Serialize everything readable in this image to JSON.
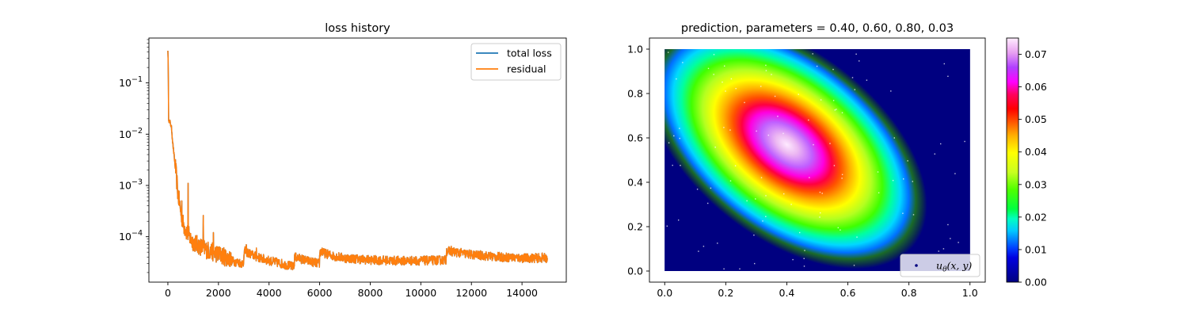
{
  "chart_data": [
    {
      "type": "line",
      "title": "loss history",
      "xlabel": "",
      "ylabel": "",
      "yscale": "log",
      "xlim": [
        -750,
        15750
      ],
      "ylim": [
        1.3e-05,
        0.75
      ],
      "x_ticks": [
        0,
        2000,
        4000,
        6000,
        8000,
        10000,
        12000,
        14000
      ],
      "x_tick_labels": [
        "0",
        "2000",
        "4000",
        "6000",
        "8000",
        "10000",
        "12000",
        "14000"
      ],
      "y_ticks": [
        0.1,
        0.01,
        0.001,
        0.0001
      ],
      "y_tick_labels": [
        {
          "base": "10",
          "exp": "−1"
        },
        {
          "base": "10",
          "exp": "−2"
        },
        {
          "base": "10",
          "exp": "−3"
        },
        {
          "base": "10",
          "exp": "−4"
        }
      ],
      "legend_position": "top-right",
      "series": [
        {
          "name": "total loss",
          "color": "#1f77b4"
        },
        {
          "name": "residual",
          "color": "#ff7f0e"
        }
      ],
      "anchor_points": {
        "x": [
          0,
          15,
          30,
          60,
          100,
          150,
          200,
          300,
          400,
          500,
          600,
          700,
          800,
          900,
          1000,
          1200,
          1500,
          2000,
          2500,
          2999,
          3001,
          3500,
          4000,
          4500,
          4999,
          5001,
          5500,
          5999,
          6001,
          6500,
          7000,
          8000,
          9000,
          10000,
          10999,
          11001,
          12000,
          13000,
          14000,
          15000
        ],
        "y": [
          0.45,
          0.2,
          0.02,
          0.017,
          0.016,
          0.012,
          0.006,
          0.002,
          0.0006,
          0.0003,
          0.00016,
          0.00012,
          0.0001,
          8e-05,
          7e-05,
          6e-05,
          5e-05,
          4e-05,
          3.2e-05,
          2.8e-05,
          5e-05,
          3.8e-05,
          3.2e-05,
          2.8e-05,
          2.4e-05,
          3.8e-05,
          3.2e-05,
          2.8e-05,
          4.8e-05,
          4e-05,
          3.6e-05,
          3.3e-05,
          3.2e-05,
          3.2e-05,
          3.3e-05,
          5e-05,
          4.2e-05,
          3.8e-05,
          3.6e-05,
          3.6e-05
        ]
      },
      "spikes": [
        {
          "x": 800,
          "y": 0.0011
        },
        {
          "x": 550,
          "y": 0.0005
        },
        {
          "x": 1400,
          "y": 0.00026
        },
        {
          "x": 1800,
          "y": 0.00012
        },
        {
          "x": 3100,
          "y": 7e-05
        },
        {
          "x": 3500,
          "y": 6e-05
        },
        {
          "x": 5100,
          "y": 4e-05
        },
        {
          "x": 6100,
          "y": 6e-05
        },
        {
          "x": 11200,
          "y": 6.5e-05
        },
        {
          "x": 14800,
          "y": 4.8e-05
        }
      ]
    },
    {
      "type": "heatmap",
      "title": "prediction, parameters = 0.40, 0.60, 0.80, 0.03",
      "xlabel": "",
      "ylabel": "",
      "xlim": [
        -0.05,
        1.05
      ],
      "ylim": [
        -0.05,
        1.05
      ],
      "x_ticks": [
        0,
        0.2,
        0.4,
        0.6,
        0.8,
        1.0
      ],
      "x_tick_labels": [
        "0.0",
        "0.2",
        "0.4",
        "0.6",
        "0.8",
        "1.0"
      ],
      "y_ticks": [
        0,
        0.2,
        0.4,
        0.6,
        0.8,
        1.0
      ],
      "y_tick_labels": [
        "0.0",
        "0.2",
        "0.4",
        "0.6",
        "0.8",
        "1.0"
      ],
      "colormap": "gist_ncar",
      "colorbar_range": [
        0,
        0.075
      ],
      "colorbar_ticks": [
        0,
        0.01,
        0.02,
        0.03,
        0.04,
        0.05,
        0.06,
        0.07
      ],
      "colorbar_tick_labels": [
        "0.00",
        "0.01",
        "0.02",
        "0.03",
        "0.04",
        "0.05",
        "0.06",
        "0.07"
      ],
      "peak": {
        "x": 0.4,
        "y": 0.57,
        "value": 0.074
      },
      "legend_position": "bottom-right",
      "legend_entry": {
        "symbol": "u",
        "subscript": "θ",
        "args": "(x, y)"
      }
    }
  ]
}
